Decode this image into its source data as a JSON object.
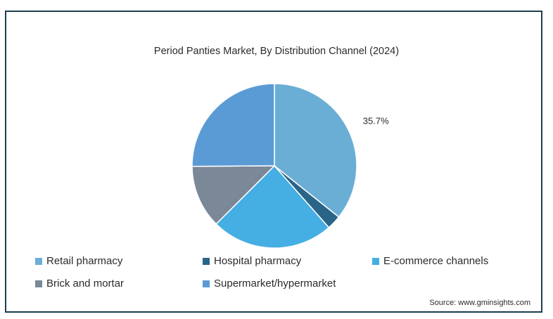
{
  "chart_data": {
    "type": "pie",
    "title": "Period Panties Market, By Distribution Channel (2024)",
    "slices": [
      {
        "name": "Retail pharmacy",
        "value": 35.7,
        "color": "#6aaed6",
        "label": "35.7%"
      },
      {
        "name": "Hospital pharmacy",
        "value": 2.8,
        "color": "#2a6487",
        "label": ""
      },
      {
        "name": "E-commerce channels",
        "value": 24.0,
        "color": "#45aee3",
        "label": ""
      },
      {
        "name": "Brick and mortar",
        "value": 12.4,
        "color": "#7a8898",
        "label": ""
      },
      {
        "name": "Supermarket/hypermarket",
        "value": 25.1,
        "color": "#5b9bd5",
        "label": ""
      }
    ],
    "legend_position": "bottom"
  },
  "source": "Source: www.gminsights.com"
}
